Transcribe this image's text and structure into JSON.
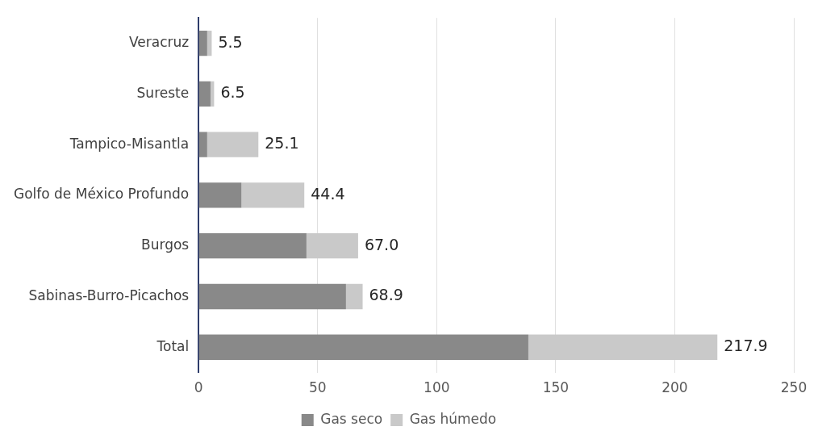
{
  "chart_data": {
    "type": "bar",
    "orientation": "horizontal",
    "stacked": true,
    "categories": [
      "Veracruz",
      "Sureste",
      "Tampico-Misantla",
      "Golfo de México Profundo",
      "Burgos",
      "Sabinas-Burro-Picachos",
      "Total"
    ],
    "series": [
      {
        "name": "Gas seco",
        "color": "#898989",
        "values": [
          3.6,
          5.0,
          3.6,
          18.0,
          45.3,
          61.9,
          138.5
        ]
      },
      {
        "name": "Gas húmedo",
        "color": "#c9c9c9",
        "values": [
          1.9,
          1.5,
          21.5,
          26.4,
          21.7,
          7.0,
          79.4
        ]
      }
    ],
    "totals": [
      "5.5",
      "6.5",
      "25.1",
      "44.4",
      "67.0",
      "68.9",
      "217.9"
    ],
    "xlim": [
      0,
      250
    ],
    "xticks": [
      0,
      50,
      100,
      150,
      200,
      250
    ],
    "grid": "x",
    "legend": "bottom"
  }
}
